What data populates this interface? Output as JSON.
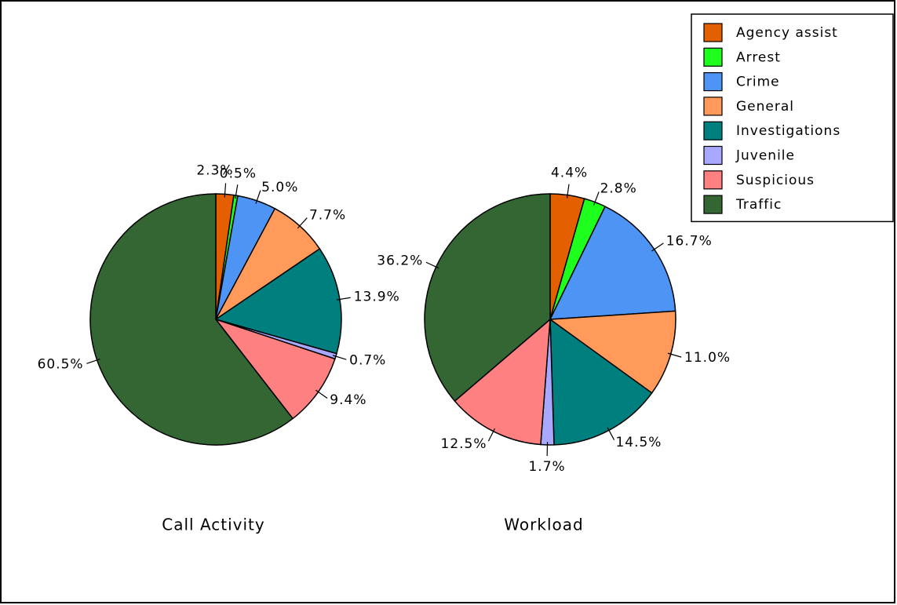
{
  "chart_data": [
    {
      "type": "pie",
      "title": "Call Activity",
      "categories": [
        "Agency assist",
        "Arrest",
        "Crime",
        "General",
        "Investigations",
        "Juvenile",
        "Suspicious",
        "Traffic"
      ],
      "values": [
        2.3,
        0.5,
        5.0,
        7.7,
        13.9,
        0.7,
        9.4,
        60.5
      ],
      "value_labels": [
        "2.3%",
        "0.5%",
        "5.0%",
        "7.7%",
        "13.9%",
        "0.7%",
        "9.4%",
        "60.5%"
      ],
      "colors": [
        "#e35f00",
        "#1eff1e",
        "#4d94f4",
        "#ff9a5a",
        "#007f7f",
        "#a8a8ff",
        "#ff8080",
        "#336633"
      ],
      "legend": "upper right"
    },
    {
      "type": "pie",
      "title": "Workload",
      "categories": [
        "Agency assist",
        "Arrest",
        "Crime",
        "General",
        "Investigations",
        "Juvenile",
        "Suspicious",
        "Traffic"
      ],
      "values": [
        4.4,
        2.8,
        16.7,
        11.0,
        14.5,
        1.7,
        12.5,
        36.2
      ],
      "value_labels": [
        "4.4%",
        "2.8%",
        "16.7%",
        "11.0%",
        "14.5%",
        "1.7%",
        "12.5%",
        "36.2%"
      ],
      "colors": [
        "#e35f00",
        "#1eff1e",
        "#4d94f4",
        "#ff9a5a",
        "#007f7f",
        "#a8a8ff",
        "#ff8080",
        "#336633"
      ]
    }
  ]
}
